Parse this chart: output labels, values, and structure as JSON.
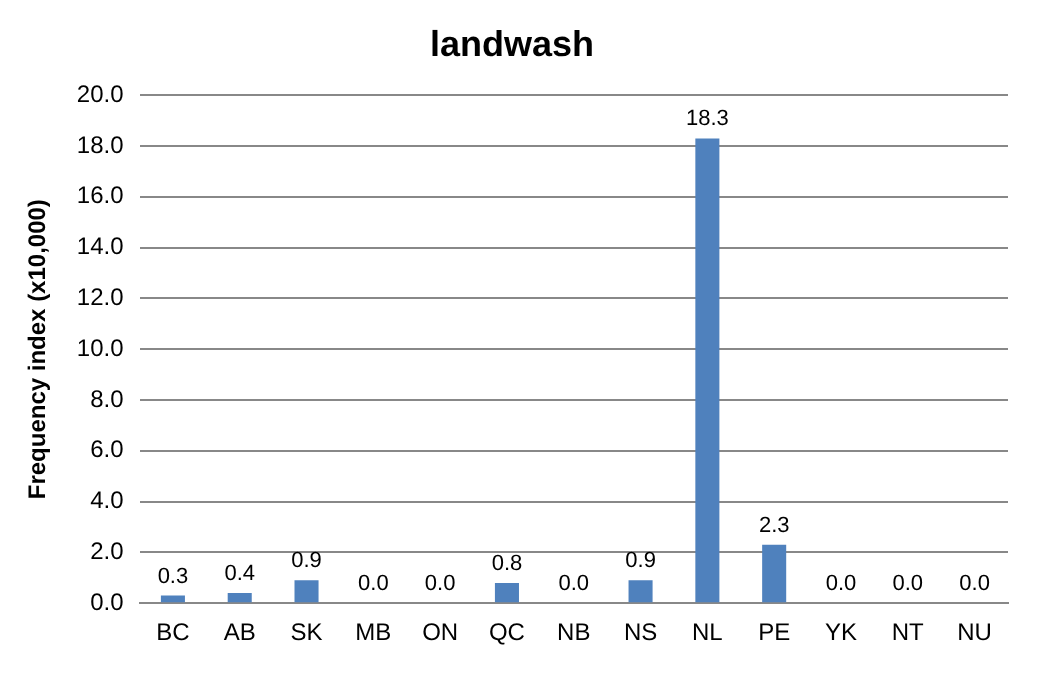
{
  "chart_data": {
    "type": "bar",
    "title": "landwash",
    "ylabel": "Frequency index (x10,000)",
    "categories": [
      "BC",
      "AB",
      "SK",
      "MB",
      "ON",
      "QC",
      "NB",
      "NS",
      "NL",
      "PE",
      "YK",
      "NT",
      "NU"
    ],
    "values": [
      0.3,
      0.4,
      0.9,
      0,
      0,
      0.8,
      0,
      0.9,
      18.3,
      2.3,
      0,
      0,
      0
    ],
    "value_labels": [
      "0.3",
      "0.4",
      "0.9",
      "0.0",
      "0.0",
      "0.8",
      "0.0",
      "0.9",
      "18.3",
      "2.3",
      "0.0",
      "0.0",
      "0.0"
    ],
    "color": "#4f81bd",
    "ylim": [
      0,
      20
    ],
    "yticks": [
      {
        "value": 0,
        "label": "0.0"
      },
      {
        "value": 2,
        "label": "2.0"
      },
      {
        "value": 4,
        "label": "4.0"
      },
      {
        "value": 6,
        "label": "6.0"
      },
      {
        "value": 8,
        "label": "8.0"
      },
      {
        "value": 10,
        "label": "10.0"
      },
      {
        "value": 12,
        "label": "12.0"
      },
      {
        "value": 14,
        "label": "14.0"
      },
      {
        "value": 16,
        "label": "16.0"
      },
      {
        "value": 18,
        "label": "18.0"
      },
      {
        "value": 20,
        "label": "20.0"
      }
    ],
    "grid": "y",
    "legend": false
  }
}
